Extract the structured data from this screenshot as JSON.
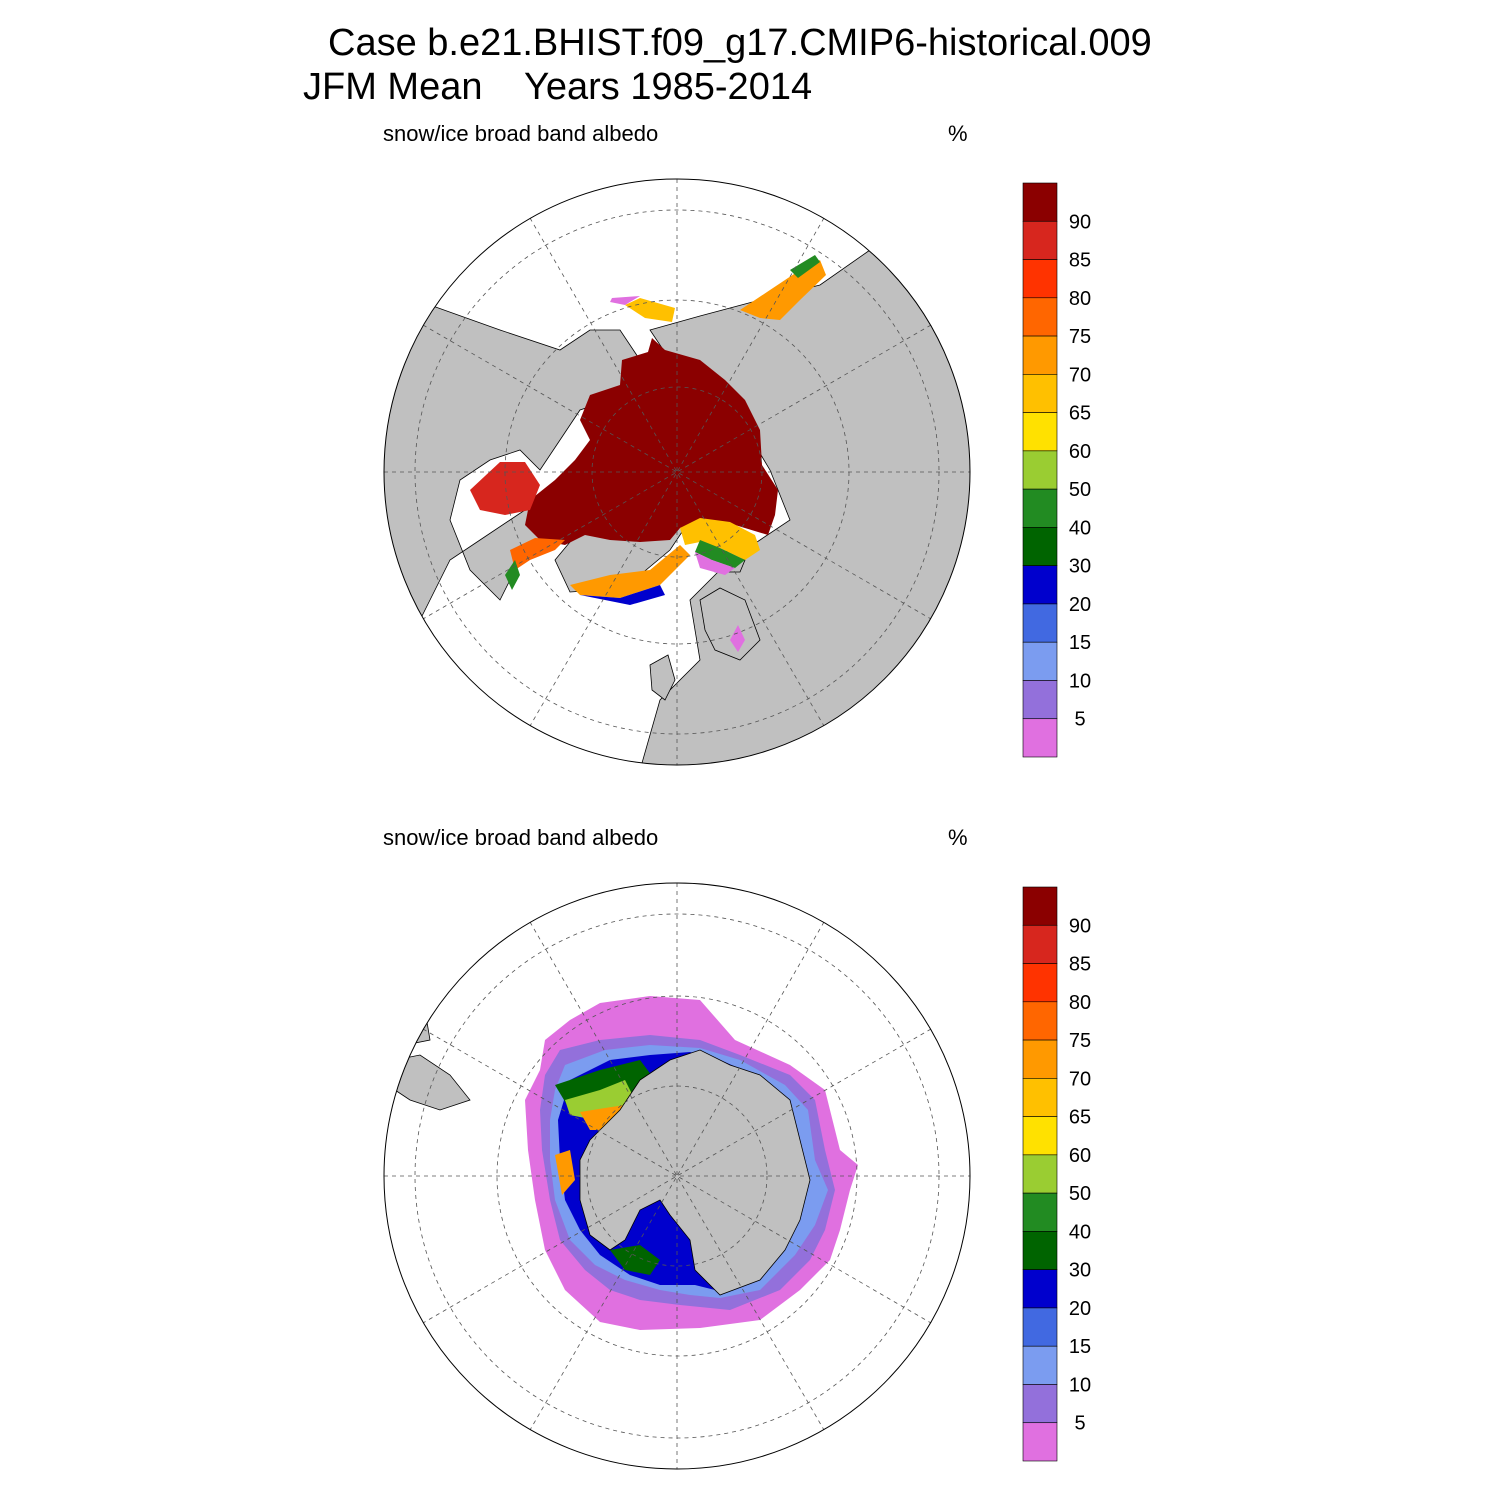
{
  "title": {
    "case": "Case b.e21.BHIST.f09_g17.CMIP6-historical.009",
    "season": "JFM Mean",
    "years": "Years 1985-2014"
  },
  "panels": [
    {
      "hemisphere": "north",
      "variable": "snow/ice broad band albedo",
      "units": "%"
    },
    {
      "hemisphere": "south",
      "variable": "snow/ice broad band albedo",
      "units": "%"
    }
  ],
  "colorbar": {
    "levels": [
      "90",
      "85",
      "80",
      "75",
      "70",
      "65",
      "60",
      "50",
      "40",
      "30",
      "20",
      "15",
      "10",
      "5"
    ],
    "colors": [
      "#8b0000",
      "#d7261e",
      "#ff3300",
      "#ff6600",
      "#ff9900",
      "#ffc000",
      "#ffe100",
      "#9acd32",
      "#228b22",
      "#006400",
      "#0000cd",
      "#4169e1",
      "#7b9cf0",
      "#9370db",
      "#e070e0"
    ]
  },
  "colors": {
    "land": "#c0c0c0",
    "ocean": "#ffffff",
    "grid": "#555555"
  }
}
